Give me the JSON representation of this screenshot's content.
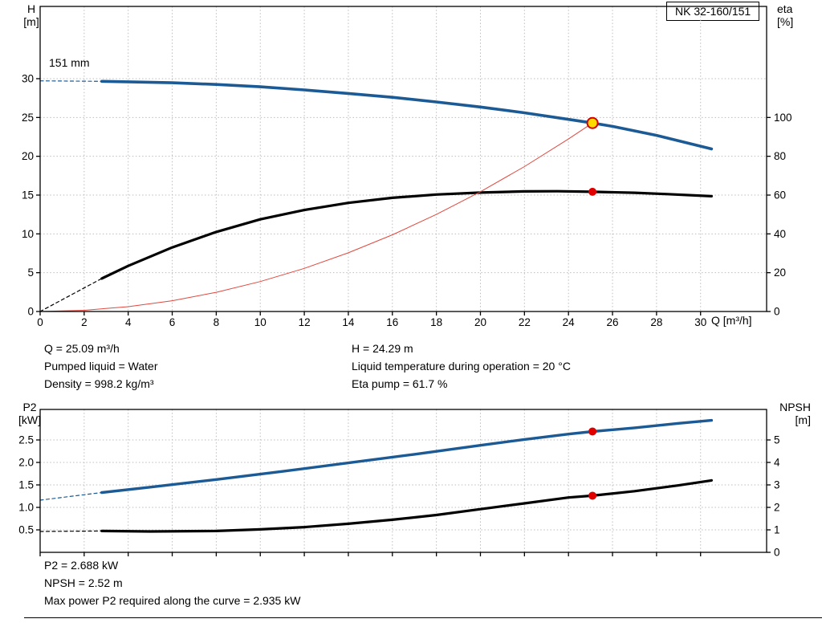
{
  "header": {
    "pump_type": "NK 32-160/151"
  },
  "impeller_label": "151 mm",
  "x_axis_label": "Q [m³/h]",
  "axis_corner_labels": {
    "top_left": {
      "line1": "H",
      "line2": "[m]"
    },
    "top_right": {
      "line1": "eta",
      "line2": "[%]"
    },
    "bottom_left": {
      "line1": "P2",
      "line2": "[kW]"
    },
    "bottom_right": {
      "line1": "NPSH",
      "line2": "[m]"
    }
  },
  "top_info": {
    "q": "Q = 25.09 m³/h",
    "pumped_liquid": "Pumped liquid = Water",
    "density": "Density = 998.2 kg/m³",
    "h": "H = 24.29 m",
    "liquid_temp": "Liquid temperature during operation = 20 °C",
    "eta_pump": "Eta pump = 61.7 %"
  },
  "bottom_info": {
    "p2": "P2 = 2.688 kW",
    "npsh": "NPSH = 2.52 m",
    "max_power": "Max power P2 required along the curve = 2.935 kW"
  },
  "colors": {
    "curve_blue": "#1b5a94",
    "curve_black": "#000000",
    "duty_red": "#e0483e",
    "marker_red": "#e00000",
    "marker_yellow": "#ffd900"
  },
  "chart_data": [
    {
      "id": "top",
      "type": "line",
      "title": "Pump head and efficiency vs flow",
      "x_axis": {
        "label": "Q [m³/h]",
        "min": 0,
        "max": 33,
        "show_labels": true,
        "ticks": [
          {
            "v": 0,
            "label": "0"
          },
          {
            "v": 2,
            "label": "2"
          },
          {
            "v": 4,
            "label": "4"
          },
          {
            "v": 6,
            "label": "6"
          },
          {
            "v": 8,
            "label": "8"
          },
          {
            "v": 10,
            "label": "10"
          },
          {
            "v": 12,
            "label": "12"
          },
          {
            "v": 14,
            "label": "14"
          },
          {
            "v": 16,
            "label": "16"
          },
          {
            "v": 18,
            "label": "18"
          },
          {
            "v": 20,
            "label": "20"
          },
          {
            "v": 22,
            "label": "22"
          },
          {
            "v": 24,
            "label": "24"
          },
          {
            "v": 26,
            "label": "26"
          },
          {
            "v": 28,
            "label": "28"
          },
          {
            "v": 30,
            "label": "30"
          }
        ]
      },
      "left_axis": {
        "title": "H [m]",
        "min": 0,
        "max": 39.3,
        "ticks": [
          {
            "v": 0,
            "label": "0"
          },
          {
            "v": 5,
            "label": "5"
          },
          {
            "v": 10,
            "label": "10"
          },
          {
            "v": 15,
            "label": "15"
          },
          {
            "v": 20,
            "label": "20"
          },
          {
            "v": 25,
            "label": "25"
          },
          {
            "v": 30,
            "label": "30"
          }
        ]
      },
      "right_axis": {
        "title": "eta [%]",
        "min": 0,
        "max": 157,
        "ticks": [
          {
            "v": 0,
            "label": "0"
          },
          {
            "v": 20,
            "label": "20"
          },
          {
            "v": 40,
            "label": "40"
          },
          {
            "v": 60,
            "label": "60"
          },
          {
            "v": 80,
            "label": "80"
          },
          {
            "v": 100,
            "label": "100"
          }
        ]
      },
      "series": [
        {
          "name": "head-curve-151mm",
          "axis": "left",
          "color": "#1b5a94",
          "width": 3.6,
          "dashed_lead": [
            [
              0,
              29.72
            ],
            [
              2.8,
              29.66
            ]
          ],
          "points": [
            [
              2.8,
              29.66
            ],
            [
              4,
              29.6
            ],
            [
              6,
              29.47
            ],
            [
              8,
              29.25
            ],
            [
              10,
              28.95
            ],
            [
              12,
              28.55
            ],
            [
              14,
              28.1
            ],
            [
              16,
              27.6
            ],
            [
              18,
              27.0
            ],
            [
              20,
              26.35
            ],
            [
              22,
              25.6
            ],
            [
              24,
              24.75
            ],
            [
              25.09,
              24.29
            ],
            [
              26,
              23.85
            ],
            [
              28,
              22.7
            ],
            [
              30,
              21.3
            ],
            [
              30.5,
              20.95
            ]
          ]
        },
        {
          "name": "efficiency-curve",
          "axis": "right",
          "color": "#000000",
          "width": 3.2,
          "dashed_lead": [
            [
              0,
              0
            ],
            [
              2.8,
              17
            ]
          ],
          "points": [
            [
              2.8,
              17
            ],
            [
              4,
              23.5
            ],
            [
              6,
              33
            ],
            [
              8,
              41
            ],
            [
              10,
              47.5
            ],
            [
              12,
              52.3
            ],
            [
              14,
              56
            ],
            [
              16,
              58.6
            ],
            [
              18,
              60.3
            ],
            [
              20,
              61.3
            ],
            [
              22,
              61.9
            ],
            [
              23.5,
              62.0
            ],
            [
              25.09,
              61.7
            ],
            [
              27,
              61.2
            ],
            [
              28.5,
              60.5
            ],
            [
              30.5,
              59.4
            ]
          ]
        },
        {
          "name": "duty-system-curve",
          "axis": "left",
          "color": "#e0483e",
          "width": 1,
          "points": [
            [
              0,
              0
            ],
            [
              2,
              0.154
            ],
            [
              4,
              0.617
            ],
            [
              6,
              1.389
            ],
            [
              8,
              2.47
            ],
            [
              10,
              3.859
            ],
            [
              12,
              5.557
            ],
            [
              14,
              7.563
            ],
            [
              16,
              9.879
            ],
            [
              18,
              12.503
            ],
            [
              20,
              15.435
            ],
            [
              22,
              18.677
            ],
            [
              24,
              22.227
            ],
            [
              25.09,
              24.29
            ]
          ]
        }
      ],
      "markers": [
        {
          "name": "duty-point-marker",
          "q": 25.09,
          "v": 24.29,
          "axis": "left",
          "fill": "#ffd900",
          "stroke": "#d40000",
          "r": 6.5,
          "stroke_width": 2
        },
        {
          "name": "eta-point-marker",
          "q": 25.09,
          "v": 61.7,
          "axis": "right",
          "fill": "#e00000",
          "stroke": "none",
          "r": 5,
          "stroke_width": 0
        }
      ],
      "annotations": [
        "151 mm",
        "NK 32-160/151"
      ]
    },
    {
      "id": "bottom",
      "type": "line",
      "title": "Power P2 and NPSH vs flow",
      "x_axis": {
        "label": "",
        "min": 0,
        "max": 33,
        "show_labels": false,
        "ticks": [
          {
            "v": 0,
            "label": "0"
          },
          {
            "v": 2,
            "label": "2"
          },
          {
            "v": 4,
            "label": "4"
          },
          {
            "v": 6,
            "label": "6"
          },
          {
            "v": 8,
            "label": "8"
          },
          {
            "v": 10,
            "label": "10"
          },
          {
            "v": 12,
            "label": "12"
          },
          {
            "v": 14,
            "label": "14"
          },
          {
            "v": 16,
            "label": "16"
          },
          {
            "v": 18,
            "label": "18"
          },
          {
            "v": 20,
            "label": "20"
          },
          {
            "v": 22,
            "label": "22"
          },
          {
            "v": 24,
            "label": "24"
          },
          {
            "v": 26,
            "label": "26"
          },
          {
            "v": 28,
            "label": "28"
          },
          {
            "v": 30,
            "label": "30"
          }
        ]
      },
      "left_axis": {
        "title": "P2 [kW]",
        "min": 0,
        "max": 3.18,
        "ticks": [
          {
            "v": 0.5,
            "label": "0.5"
          },
          {
            "v": 1.0,
            "label": "1.0"
          },
          {
            "v": 1.5,
            "label": "1.5"
          },
          {
            "v": 2.0,
            "label": "2.0"
          },
          {
            "v": 2.5,
            "label": "2.5"
          }
        ]
      },
      "right_axis": {
        "title": "NPSH [m]",
        "min": 0,
        "max": 6.36,
        "ticks": [
          {
            "v": 0,
            "label": "0"
          },
          {
            "v": 1,
            "label": "1"
          },
          {
            "v": 2,
            "label": "2"
          },
          {
            "v": 3,
            "label": "3"
          },
          {
            "v": 4,
            "label": "4"
          },
          {
            "v": 5,
            "label": "5"
          }
        ]
      },
      "series": [
        {
          "name": "p2-power-curve",
          "axis": "left",
          "color": "#1b5a94",
          "width": 3.4,
          "dashed_lead": [
            [
              0,
              1.16
            ],
            [
              2.8,
              1.33
            ]
          ],
          "points": [
            [
              2.8,
              1.33
            ],
            [
              5,
              1.45
            ],
            [
              8,
              1.62
            ],
            [
              11,
              1.8
            ],
            [
              14,
              1.99
            ],
            [
              17,
              2.18
            ],
            [
              20,
              2.38
            ],
            [
              22,
              2.51
            ],
            [
              24,
              2.63
            ],
            [
              25.09,
              2.688
            ],
            [
              27,
              2.77
            ],
            [
              29,
              2.87
            ],
            [
              30.5,
              2.935
            ]
          ]
        },
        {
          "name": "npsh-curve",
          "axis": "right",
          "color": "#000000",
          "width": 3.2,
          "dashed_lead": [
            [
              0,
              0.93
            ],
            [
              2.8,
              0.95
            ]
          ],
          "points": [
            [
              2.8,
              0.95
            ],
            [
              5,
              0.93
            ],
            [
              8,
              0.95
            ],
            [
              10,
              1.02
            ],
            [
              12,
              1.12
            ],
            [
              14,
              1.27
            ],
            [
              16,
              1.45
            ],
            [
              18,
              1.66
            ],
            [
              20,
              1.92
            ],
            [
              22,
              2.18
            ],
            [
              24,
              2.44
            ],
            [
              25.09,
              2.52
            ],
            [
              27,
              2.72
            ],
            [
              29,
              2.98
            ],
            [
              30.5,
              3.2
            ]
          ]
        }
      ],
      "markers": [
        {
          "name": "p2-point-marker",
          "q": 25.09,
          "v": 2.688,
          "axis": "left",
          "fill": "#e00000",
          "stroke": "none",
          "r": 5,
          "stroke_width": 0
        },
        {
          "name": "npsh-point-marker",
          "q": 25.09,
          "v": 2.52,
          "axis": "right",
          "fill": "#e00000",
          "stroke": "none",
          "r": 5,
          "stroke_width": 0
        }
      ]
    }
  ]
}
